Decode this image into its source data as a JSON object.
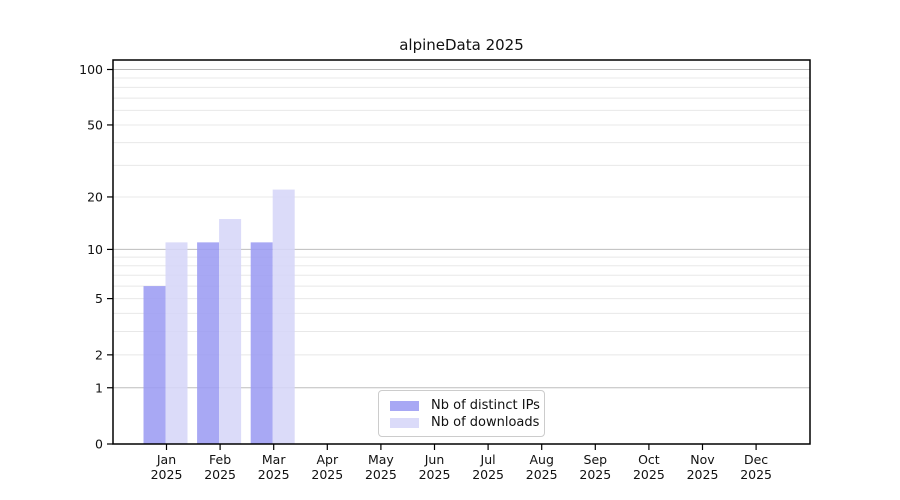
{
  "chart_data": {
    "type": "bar",
    "title": "alpineData 2025",
    "year_label": "2025",
    "categories": [
      "Jan",
      "Feb",
      "Mar",
      "Apr",
      "May",
      "Jun",
      "Jul",
      "Aug",
      "Sep",
      "Oct",
      "Nov",
      "Dec"
    ],
    "series": [
      {
        "name": "Nb of distinct IPs",
        "color": "#9b9bf2",
        "values": [
          6,
          11,
          11,
          null,
          null,
          null,
          null,
          null,
          null,
          null,
          null,
          null
        ]
      },
      {
        "name": "Nb of downloads",
        "color": "#d6d6f8",
        "values": [
          11,
          15,
          22,
          null,
          null,
          null,
          null,
          null,
          null,
          null,
          null,
          null
        ]
      }
    ],
    "y_axis": {
      "scale": "log10(x+1)",
      "min": 0,
      "max": 100,
      "tick_labels": [
        0,
        1,
        2,
        5,
        10,
        20,
        50,
        100
      ]
    },
    "gridlines": {
      "major_values": [
        1,
        10,
        100
      ],
      "minor_values": [
        2,
        3,
        4,
        5,
        6,
        7,
        8,
        9,
        20,
        30,
        40,
        50,
        60,
        70,
        80,
        90
      ]
    },
    "legend": {
      "position": "bottom-center"
    },
    "colors": {
      "axis": "#000000",
      "text": "#111111",
      "grid_major": "#bdbdbd",
      "grid_minor": "#e8e8e8",
      "background": "#ffffff"
    }
  }
}
